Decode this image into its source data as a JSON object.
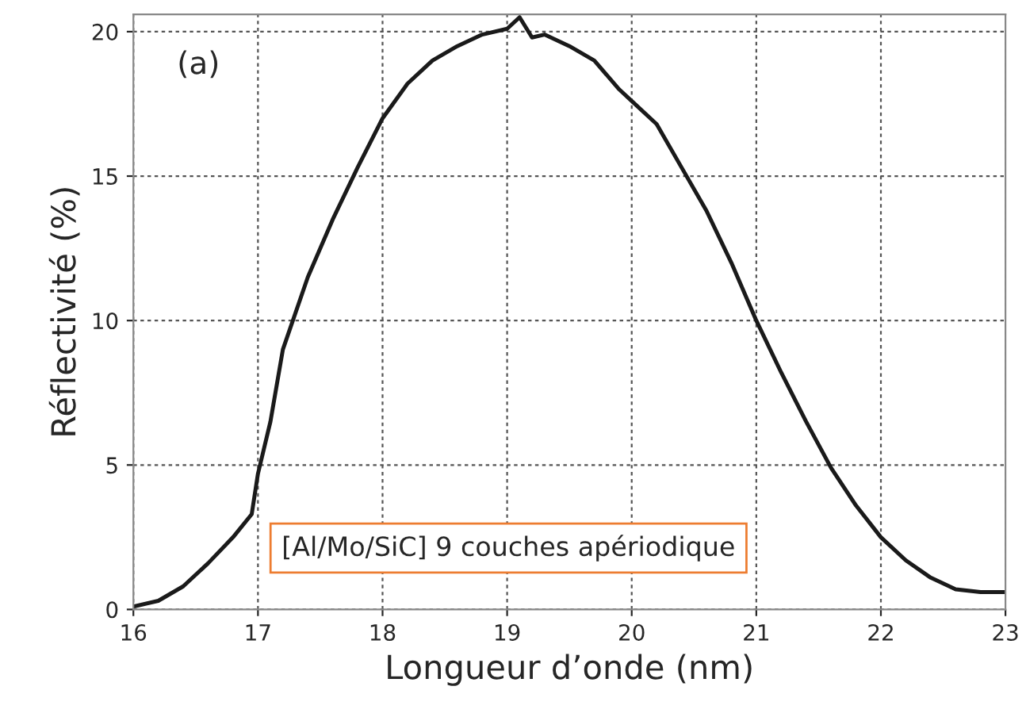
{
  "chart_data": {
    "type": "line",
    "xlabel": "Longueur d’onde (nm)",
    "ylabel": "Réflectivité (%)",
    "x": [
      16.0,
      16.2,
      16.4,
      16.6,
      16.8,
      16.95,
      17.0,
      17.1,
      17.2,
      17.4,
      17.6,
      17.8,
      18.0,
      18.2,
      18.4,
      18.6,
      18.8,
      19.0,
      19.1,
      19.2,
      19.3,
      19.5,
      19.7,
      19.9,
      20.0,
      20.2,
      20.4,
      20.6,
      20.8,
      21.0,
      21.2,
      21.4,
      21.6,
      21.8,
      22.0,
      22.2,
      22.4,
      22.6,
      22.8,
      23.0
    ],
    "series": [
      {
        "color": "#1a1a1a",
        "values": [
          0.1,
          0.3,
          0.8,
          1.6,
          2.5,
          3.3,
          4.7,
          6.5,
          9.0,
          11.5,
          13.5,
          15.3,
          17.0,
          18.2,
          19.0,
          19.5,
          19.9,
          20.1,
          20.5,
          19.8,
          19.9,
          19.5,
          19.0,
          18.0,
          17.6,
          16.8,
          15.3,
          13.8,
          12.0,
          10.0,
          8.2,
          6.5,
          4.9,
          3.6,
          2.5,
          1.7,
          1.1,
          0.7,
          0.6,
          0.6
        ]
      }
    ],
    "xlim": [
      16,
      23
    ],
    "xticks": [
      16,
      17,
      18,
      19,
      20,
      21,
      22,
      23
    ],
    "ylim": [
      0,
      20.6
    ],
    "yticks": [
      0,
      5,
      10,
      15,
      20
    ],
    "grid": true,
    "line_style": "solid",
    "marker": "none",
    "legend": false,
    "annotations": [
      "(a)",
      "[Al/Mo/SiC] 9 couches apériodique"
    ]
  }
}
